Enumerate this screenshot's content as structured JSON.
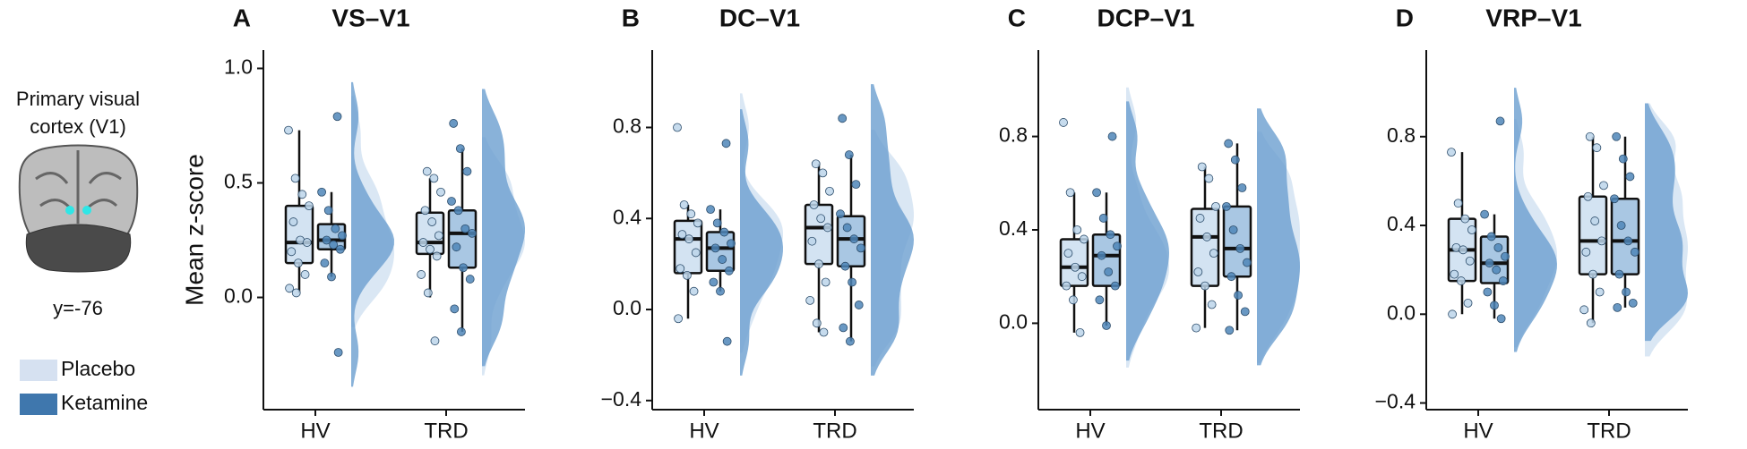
{
  "figure": {
    "caption": [
      "Primary visual",
      "cortex (V1)"
    ],
    "slice": "y=-76"
  },
  "legend": [
    {
      "name": "Placebo",
      "color": "#d6e1f1"
    },
    {
      "name": "Ketamine",
      "color": "#3f77ad"
    }
  ],
  "chart_data": [
    {
      "type": "box",
      "letter": "A",
      "title": "VS–V1",
      "ylabel": "Mean z-score",
      "categories": [
        "HV",
        "TRD"
      ],
      "ylim": [
        -0.49,
        1.08
      ],
      "yticks": [
        {
          "value": 0,
          "label": "0.0"
        },
        0.5,
        {
          "value": 1,
          "label": "1.0"
        }
      ],
      "series": [
        {
          "box_color": "#d3e3f2",
          "point_color": "#bcd5ea",
          "violin_color": "#d6e4f3",
          "boxes": [
            {
              "min": 0.02,
              "q1": 0.15,
              "median": 0.24,
              "q3": 0.4,
              "max": 0.73
            },
            {
              "min": 0.0,
              "q1": 0.19,
              "median": 0.24,
              "q3": 0.37,
              "max": 0.52
            }
          ],
          "points": [
            [
              0.73,
              0.52,
              0.45,
              0.4,
              0.33,
              0.25,
              0.24,
              0.2,
              0.15,
              0.1,
              0.04,
              0.02
            ],
            [
              0.55,
              0.52,
              0.46,
              0.38,
              0.33,
              0.27,
              0.24,
              0.21,
              0.18,
              0.1,
              0.02,
              -0.19
            ]
          ]
        },
        {
          "box_color": "#a9c7e3",
          "point_color": "#4f86b8",
          "violin_color": "#6b9fcf",
          "boxes": [
            {
              "min": 0.09,
              "q1": 0.21,
              "median": 0.25,
              "q3": 0.32,
              "max": 0.46
            },
            {
              "min": -0.15,
              "q1": 0.13,
              "median": 0.28,
              "q3": 0.38,
              "max": 0.65
            }
          ],
          "points": [
            [
              0.79,
              0.46,
              0.38,
              0.3,
              0.27,
              0.25,
              0.23,
              0.21,
              0.15,
              0.09,
              -0.24
            ],
            [
              0.76,
              0.65,
              0.55,
              0.42,
              0.38,
              0.3,
              0.28,
              0.22,
              0.13,
              0.08,
              -0.05,
              -0.15
            ]
          ]
        }
      ]
    },
    {
      "type": "box",
      "letter": "B",
      "title": "DC–V1",
      "categories": [
        "HV",
        "TRD"
      ],
      "ylim": [
        -0.44,
        1.14
      ],
      "yticks": [
        {
          "value": -0.4,
          "label": "−0.4"
        },
        {
          "value": 0,
          "label": "0.0"
        },
        0.4,
        0.8
      ],
      "series": [
        {
          "box_color": "#d3e3f2",
          "point_color": "#bcd5ea",
          "violin_color": "#d6e4f3",
          "boxes": [
            {
              "min": -0.04,
              "q1": 0.16,
              "median": 0.31,
              "q3": 0.39,
              "max": 0.46
            },
            {
              "min": -0.1,
              "q1": 0.2,
              "median": 0.36,
              "q3": 0.46,
              "max": 0.64
            }
          ],
          "points": [
            [
              0.8,
              0.46,
              0.42,
              0.38,
              0.33,
              0.31,
              0.25,
              0.18,
              0.15,
              0.08,
              -0.04
            ],
            [
              0.64,
              0.6,
              0.52,
              0.46,
              0.4,
              0.36,
              0.3,
              0.2,
              0.12,
              0.04,
              -0.06,
              -0.1
            ]
          ]
        },
        {
          "box_color": "#a9c7e3",
          "point_color": "#4f86b8",
          "violin_color": "#6b9fcf",
          "boxes": [
            {
              "min": 0.08,
              "q1": 0.17,
              "median": 0.27,
              "q3": 0.34,
              "max": 0.44
            },
            {
              "min": -0.14,
              "q1": 0.19,
              "median": 0.31,
              "q3": 0.41,
              "max": 0.68
            }
          ],
          "points": [
            [
              0.73,
              0.44,
              0.38,
              0.34,
              0.29,
              0.27,
              0.22,
              0.17,
              0.12,
              0.08,
              -0.14
            ],
            [
              0.84,
              0.68,
              0.55,
              0.42,
              0.36,
              0.31,
              0.27,
              0.19,
              0.12,
              0.02,
              -0.08,
              -0.14
            ]
          ]
        }
      ]
    },
    {
      "type": "box",
      "letter": "C",
      "title": "DCP–V1",
      "categories": [
        "HV",
        "TRD"
      ],
      "ylim": [
        -0.37,
        1.17
      ],
      "yticks": [
        {
          "value": 0,
          "label": "0.0"
        },
        0.4,
        0.8
      ],
      "series": [
        {
          "box_color": "#d3e3f2",
          "point_color": "#bcd5ea",
          "violin_color": "#d6e4f3",
          "boxes": [
            {
              "min": -0.04,
              "q1": 0.16,
              "median": 0.24,
              "q3": 0.36,
              "max": 0.56
            },
            {
              "min": -0.02,
              "q1": 0.16,
              "median": 0.37,
              "q3": 0.49,
              "max": 0.67
            }
          ],
          "points": [
            [
              0.86,
              0.56,
              0.4,
              0.36,
              0.3,
              0.24,
              0.2,
              0.16,
              0.1,
              -0.04
            ],
            [
              0.67,
              0.62,
              0.5,
              0.45,
              0.37,
              0.3,
              0.22,
              0.16,
              0.08,
              -0.02
            ]
          ]
        },
        {
          "box_color": "#a9c7e3",
          "point_color": "#4f86b8",
          "violin_color": "#6b9fcf",
          "boxes": [
            {
              "min": -0.01,
              "q1": 0.16,
              "median": 0.29,
              "q3": 0.38,
              "max": 0.56
            },
            {
              "min": -0.03,
              "q1": 0.2,
              "median": 0.32,
              "q3": 0.5,
              "max": 0.77
            }
          ],
          "points": [
            [
              0.8,
              0.56,
              0.45,
              0.38,
              0.33,
              0.29,
              0.22,
              0.16,
              0.1,
              -0.01
            ],
            [
              0.77,
              0.7,
              0.58,
              0.5,
              0.4,
              0.32,
              0.26,
              0.2,
              0.12,
              0.05,
              -0.03
            ]
          ]
        }
      ]
    },
    {
      "type": "box",
      "letter": "D",
      "title": "VRP–V1",
      "categories": [
        "HV",
        "TRD"
      ],
      "ylim": [
        -0.43,
        1.19
      ],
      "yticks": [
        {
          "value": -0.4,
          "label": "−0.4"
        },
        {
          "value": 0,
          "label": "0.0"
        },
        0.4,
        0.8
      ],
      "series": [
        {
          "box_color": "#d3e3f2",
          "point_color": "#bcd5ea",
          "violin_color": "#d6e4f3",
          "boxes": [
            {
              "min": 0.0,
              "q1": 0.15,
              "median": 0.29,
              "q3": 0.43,
              "max": 0.73
            },
            {
              "min": -0.04,
              "q1": 0.18,
              "median": 0.33,
              "q3": 0.53,
              "max": 0.8
            }
          ],
          "points": [
            [
              0.73,
              0.5,
              0.43,
              0.38,
              0.3,
              0.29,
              0.24,
              0.18,
              0.15,
              0.05,
              0.0
            ],
            [
              0.8,
              0.75,
              0.58,
              0.53,
              0.42,
              0.33,
              0.28,
              0.18,
              0.1,
              0.02,
              -0.04
            ]
          ]
        },
        {
          "box_color": "#a9c7e3",
          "point_color": "#4f86b8",
          "violin_color": "#6b9fcf",
          "boxes": [
            {
              "min": -0.02,
              "q1": 0.14,
              "median": 0.23,
              "q3": 0.35,
              "max": 0.45
            },
            {
              "min": 0.03,
              "q1": 0.18,
              "median": 0.33,
              "q3": 0.52,
              "max": 0.8
            }
          ],
          "points": [
            [
              0.87,
              0.45,
              0.35,
              0.3,
              0.26,
              0.23,
              0.2,
              0.15,
              0.1,
              0.04,
              -0.02
            ],
            [
              0.8,
              0.7,
              0.62,
              0.52,
              0.4,
              0.33,
              0.28,
              0.18,
              0.1,
              0.05,
              0.03
            ]
          ]
        }
      ]
    }
  ]
}
